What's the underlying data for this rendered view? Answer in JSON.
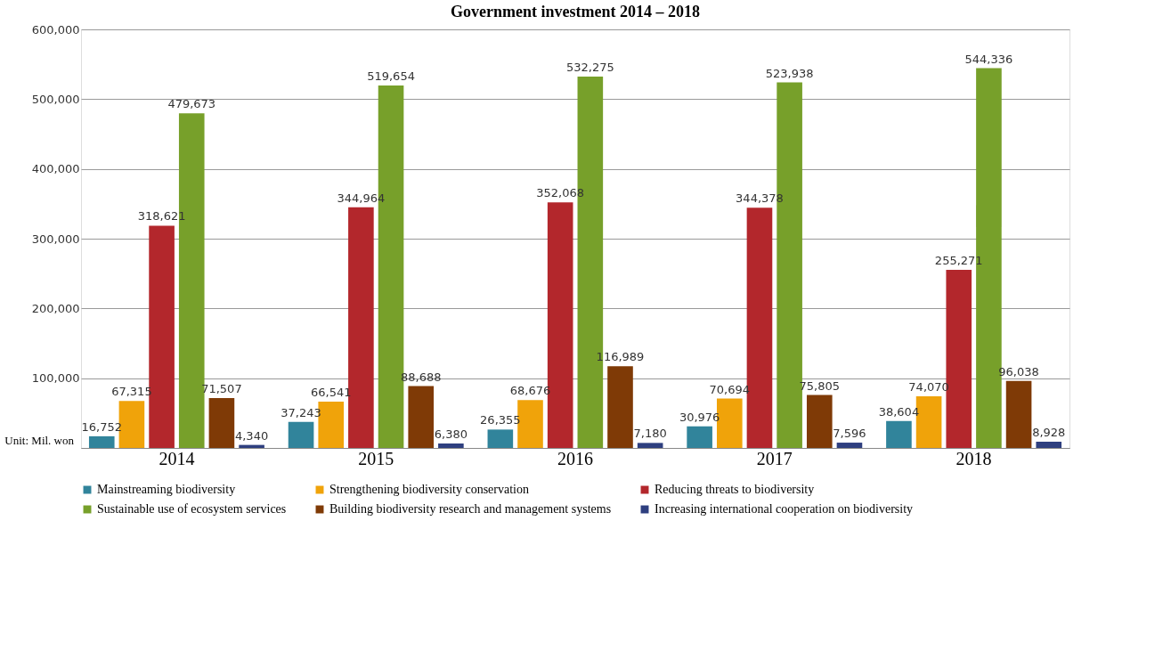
{
  "chart_data": {
    "type": "bar",
    "title": "Government investment 2014 – 2018",
    "categories": [
      "2014",
      "2015",
      "2016",
      "2017",
      "2018"
    ],
    "series": [
      {
        "name": "Mainstreaming biodiversity",
        "color": "#31849b",
        "values": [
          16752,
          37243,
          26355,
          30976,
          38604
        ],
        "value_labels": [
          "16,752",
          "37,243",
          "26,355",
          "30,976",
          "38,604"
        ]
      },
      {
        "name": "Strengthening biodiversity conservation",
        "color": "#f0a30a",
        "values": [
          67315,
          66541,
          68676,
          70694,
          74070
        ],
        "value_labels": [
          "67,315",
          "66,541",
          "68,676",
          "70,694",
          "74,070"
        ]
      },
      {
        "name": "Reducing threats to biodiversity",
        "color": "#b3272c",
        "values": [
          318621,
          344964,
          352068,
          344378,
          255271
        ],
        "value_labels": [
          "318,621",
          "344,964",
          "352,068",
          "344,378",
          "255,271"
        ]
      },
      {
        "name": "Sustainable use of ecosystem services",
        "color": "#77a02a",
        "values": [
          479673,
          519654,
          532275,
          523938,
          544336
        ],
        "value_labels": [
          "479,673",
          "519,654",
          "532,275",
          "523,938",
          "544,336"
        ]
      },
      {
        "name": "Building biodiversity research and management systems",
        "color": "#7f3a06",
        "values": [
          71507,
          88688,
          116989,
          75805,
          96038
        ],
        "value_labels": [
          "71,507",
          "88,688",
          "116,989",
          "75,805",
          "96,038"
        ]
      },
      {
        "name": "Increasing international cooperation on biodiversity",
        "color": "#2e3f7f",
        "values": [
          4340,
          6380,
          7180,
          7596,
          8928
        ],
        "value_labels": [
          "4,340",
          "6,380",
          "7,180",
          "7,596",
          "8,928"
        ]
      }
    ],
    "ylim": [
      0,
      600000
    ],
    "yticks": [
      {
        "value": 0,
        "label": null
      },
      {
        "value": 100000,
        "label": "100,000"
      },
      {
        "value": 200000,
        "label": "200,000"
      },
      {
        "value": 300000,
        "label": "300,000"
      },
      {
        "value": 400000,
        "label": "400,000"
      },
      {
        "value": 500000,
        "label": "500,000"
      },
      {
        "value": 600000,
        "label": "600,000"
      }
    ],
    "grid": "y",
    "legend": "bottom",
    "annotations": [
      "Unit: Mil. won"
    ]
  }
}
